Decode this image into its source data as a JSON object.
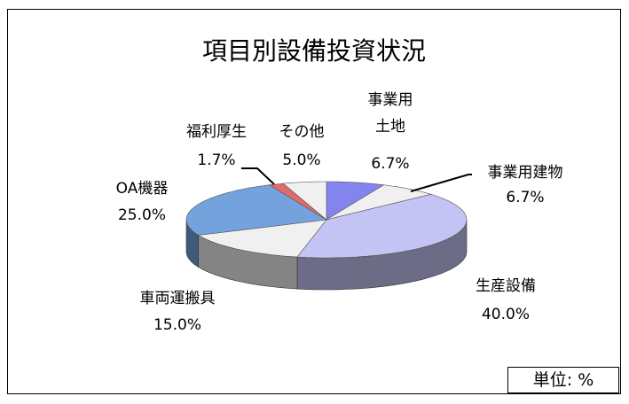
{
  "chart_data": {
    "type": "pie3d",
    "title": "項目別設備投資状況",
    "categories": [
      "事業用\n土地",
      "事業用建物",
      "生産設備",
      "車両運搬具",
      "OA機器",
      "福利厚生",
      "その他"
    ],
    "values": [
      6.7,
      6.7,
      40.0,
      15.0,
      25.0,
      1.7,
      5.0
    ],
    "value_labels": [
      "6.7%",
      "6.7%",
      "40.0%",
      "15.0%",
      "25.0%",
      "1.7%",
      "5.0%"
    ],
    "colors": [
      "#8484ee",
      "#f0f0f0",
      "#c4c4f4",
      "#f0f0f0",
      "#74a2dc",
      "#e46a6a",
      "#f0f0f0"
    ],
    "unit": "単位: %"
  }
}
